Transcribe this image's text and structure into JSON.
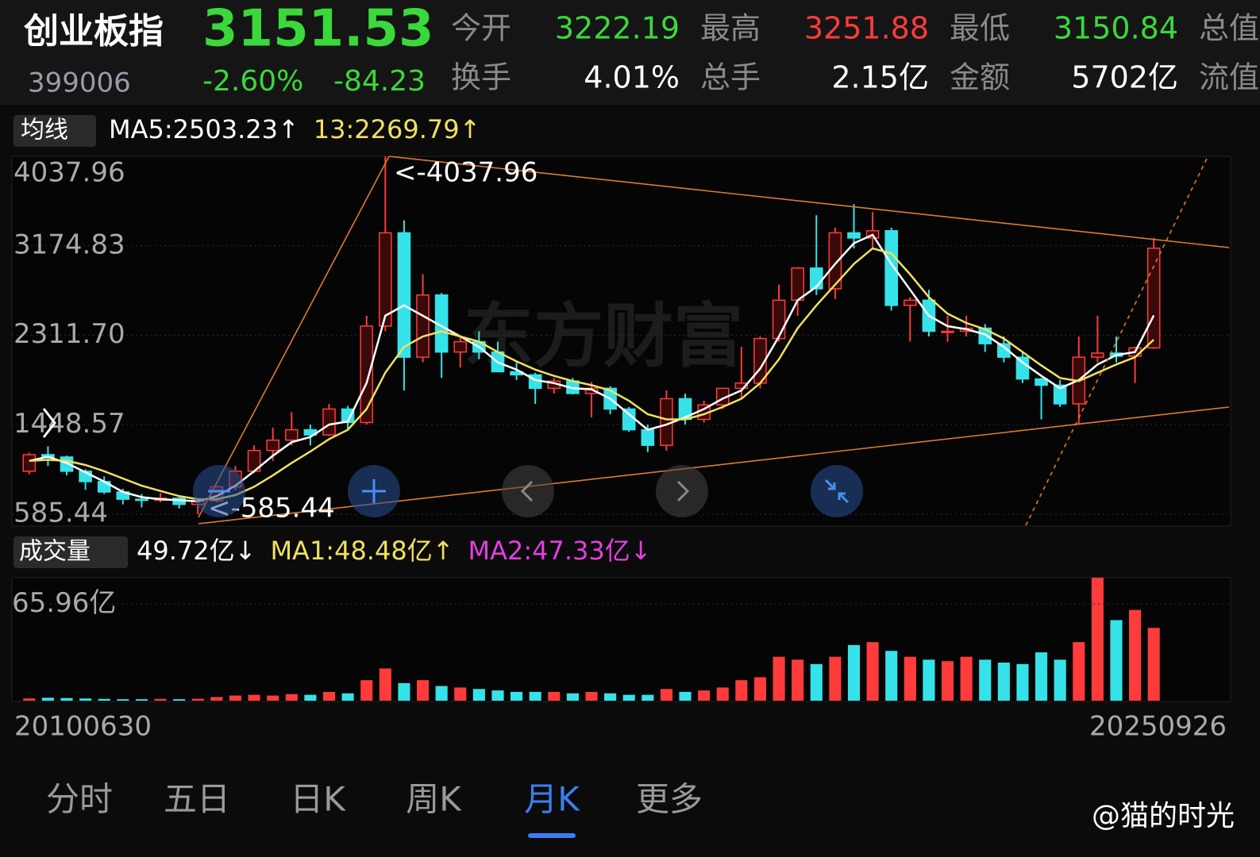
{
  "header": {
    "name": "创业板指",
    "price": "3151.53",
    "code": "399006",
    "change_pct": "-2.60%",
    "change": "-84.23",
    "fields": [
      [
        {
          "label": "今开",
          "value": "3222.19",
          "color": "#3bd83b"
        },
        {
          "label": "最高",
          "value": "3251.88",
          "color": "#ff3b3b"
        },
        {
          "label": "最低",
          "value": "3150.84",
          "color": "#3bd83b"
        },
        {
          "label": "总值"
        }
      ],
      [
        {
          "label": "换手",
          "value": "4.01%",
          "color": "#ffffff"
        },
        {
          "label": "总手",
          "value": "2.15亿",
          "color": "#ffffff"
        },
        {
          "label": "金额",
          "value": "5702亿",
          "color": "#ffffff"
        },
        {
          "label": "流值"
        }
      ]
    ]
  },
  "chart_data": [
    {
      "type": "candlestick",
      "legend_label": "均线",
      "categories": [
        "20100630",
        null,
        null,
        null,
        null,
        null,
        null,
        null,
        null,
        null,
        null,
        null,
        null,
        null,
        null,
        null,
        null,
        null,
        null,
        null,
        null,
        null,
        null,
        null,
        null,
        null,
        null,
        null,
        null,
        null,
        null,
        null,
        null,
        null,
        null,
        null,
        null,
        null,
        null,
        null,
        null,
        null,
        null,
        null,
        null,
        null,
        null,
        null,
        null,
        null,
        null,
        null,
        null,
        null,
        null,
        null,
        null,
        null,
        null,
        null,
        "20250926"
      ],
      "open": [
        1000,
        1160,
        1137,
        1000,
        900,
        800,
        730,
        720,
        740,
        680,
        715,
        850,
        1000,
        1200,
        1300,
        1400,
        1350,
        1600,
        1470,
        2400,
        3300,
        2100,
        2700,
        2150,
        2250,
        2150,
        1960,
        1930,
        1800,
        1870,
        1750,
        1800,
        1600,
        1400,
        1250,
        1700,
        1500,
        1640,
        1800,
        1850,
        2280,
        2650,
        2960,
        2760,
        3300,
        3250,
        3320,
        2600,
        2650,
        2350,
        2350,
        2380,
        2230,
        2100,
        1890,
        1830,
        1650,
        2100,
        2140,
        2110,
        2190
      ],
      "high": [
        1180,
        1240,
        1150,
        1020,
        950,
        830,
        780,
        790,
        750,
        720,
        860,
        1050,
        1250,
        1420,
        1570,
        1450,
        1650,
        1630,
        2500,
        4037.96,
        3420,
        2900,
        2720,
        2300,
        2350,
        2250,
        2050,
        1950,
        1900,
        1900,
        1860,
        1820,
        1620,
        1450,
        1780,
        1750,
        1680,
        1800,
        2200,
        2300,
        2800,
        2970,
        3470,
        3350,
        3576,
        3500,
        3350,
        2680,
        2750,
        2500,
        2500,
        2420,
        2300,
        2150,
        1900,
        1880,
        2300,
        2500,
        2300,
        2200,
        3251.88
      ],
      "low": [
        970,
        1050,
        960,
        820,
        780,
        680,
        650,
        700,
        640,
        585.44,
        700,
        820,
        980,
        1100,
        1250,
        1250,
        1340,
        1400,
        1450,
        2350,
        1780,
        2050,
        1900,
        2000,
        2080,
        1960,
        1880,
        1650,
        1750,
        1740,
        1520,
        1550,
        1380,
        1184,
        1200,
        1450,
        1470,
        1600,
        1700,
        1800,
        2250,
        2500,
        2700,
        2660,
        3150,
        3150,
        2550,
        2250,
        2300,
        2250,
        2300,
        2150,
        2050,
        1850,
        1500,
        1620,
        1460,
        2050,
        2050,
        1850,
        2180
      ],
      "close": [
        1160,
        1137,
        1000,
        900,
        800,
        730,
        720,
        740,
        680,
        715,
        850,
        1000,
        1200,
        1300,
        1400,
        1350,
        1600,
        1470,
        2400,
        3300,
        2100,
        2700,
        2150,
        2250,
        2150,
        1960,
        1930,
        1800,
        1870,
        1750,
        1800,
        1600,
        1400,
        1250,
        1700,
        1500,
        1640,
        1800,
        1850,
        2280,
        2650,
        2960,
        2760,
        3300,
        3250,
        3320,
        2600,
        2650,
        2350,
        2350,
        2380,
        2230,
        2100,
        1890,
        1830,
        1650,
        2100,
        2140,
        2110,
        2190,
        3151.53
      ],
      "up_color": "#ff3b3b",
      "down_color": "#36e2ea",
      "ylim": [
        585.44,
        4037.96
      ],
      "yticks": [
        4037.96,
        3174.83,
        {
          "value": 2311.7,
          "label": "2311.70"
        },
        1448.57,
        585.44
      ],
      "grid": true,
      "series": [
        {
          "legend": "MA5:2503.23↑",
          "color": "#ffffff",
          "values": [
            1100,
            1140,
            1080,
            990,
            900,
            800,
            750,
            730,
            720,
            710,
            760,
            860,
            1000,
            1150,
            1280,
            1330,
            1450,
            1480,
            1850,
            2500,
            2600,
            2500,
            2400,
            2300,
            2200,
            2050,
            1980,
            1880,
            1850,
            1800,
            1790,
            1700,
            1550,
            1400,
            1450,
            1520,
            1600,
            1700,
            1780,
            1990,
            2300,
            2650,
            2780,
            3000,
            3200,
            3280,
            3000,
            2750,
            2500,
            2400,
            2370,
            2320,
            2200,
            2050,
            1920,
            1800,
            1880,
            2030,
            2120,
            2150,
            2503.23
          ]
        },
        {
          "legend": "13:2269.79↑",
          "color": "#f0e060",
          "values": [
            1100,
            1110,
            1100,
            1060,
            1000,
            930,
            860,
            810,
            760,
            730,
            730,
            770,
            850,
            960,
            1080,
            1190,
            1310,
            1400,
            1600,
            1950,
            2200,
            2300,
            2350,
            2300,
            2250,
            2150,
            2060,
            1980,
            1920,
            1870,
            1830,
            1780,
            1680,
            1550,
            1500,
            1500,
            1550,
            1620,
            1700,
            1850,
            2080,
            2380,
            2600,
            2800,
            3000,
            3150,
            3100,
            2900,
            2680,
            2520,
            2430,
            2370,
            2280,
            2150,
            2020,
            1900,
            1870,
            1950,
            2030,
            2100,
            2269.79
          ]
        }
      ],
      "annotations": [
        "<-4037.96",
        "<-585.44"
      ]
    },
    {
      "type": "bar",
      "legend_label": "成交量",
      "values": [
        1.5,
        2,
        1.8,
        1.5,
        1.2,
        1,
        1,
        1.2,
        1,
        1.3,
        2.5,
        3.5,
        4,
        3.5,
        4.5,
        4,
        6,
        5,
        14,
        22,
        12,
        14,
        10,
        9,
        8,
        7,
        6,
        6,
        6,
        5,
        6,
        5,
        4,
        4,
        8,
        6,
        7,
        9,
        14,
        16,
        30,
        28,
        25,
        30,
        38,
        40,
        34,
        30,
        28,
        27,
        30,
        28,
        26,
        25,
        33,
        28,
        40,
        84,
        55,
        62,
        49.72
      ],
      "up_color": "#ff3b3b",
      "down_color": "#36e2ea",
      "ylim": [
        0,
        84
      ],
      "yticks": [
        {
          "value": 65.96,
          "label": "65.96亿"
        }
      ],
      "legend": [
        {
          "text": "49.72亿↓",
          "color": "#ffffff"
        },
        {
          "text": "MA1:48.48亿↑",
          "color": "#f0e060"
        },
        {
          "text": "MA2:47.33亿↓",
          "color": "#e040e0"
        }
      ]
    }
  ],
  "tabs": [
    "分时",
    "五日",
    "日K",
    "周K",
    "月K",
    "更多"
  ],
  "active_tab": 4,
  "watermark": "东方财富",
  "credit": "@猫的时光"
}
